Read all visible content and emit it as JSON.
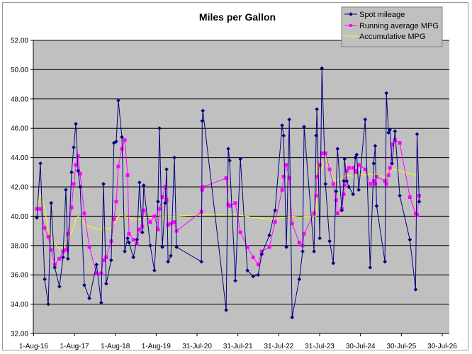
{
  "chart_data": {
    "type": "line",
    "title": "Miles per Gallon",
    "xlabel": "",
    "ylabel": "",
    "ylim": [
      32,
      52
    ],
    "xlim": [
      "2016-08-01",
      "2026-07-30"
    ],
    "y_ticks": [
      "32.00",
      "34.00",
      "36.00",
      "38.00",
      "40.00",
      "42.00",
      "44.00",
      "46.00",
      "48.00",
      "50.00",
      "52.00"
    ],
    "x_ticks": [
      {
        "date": "2016-08-01",
        "label": "1-Aug-16"
      },
      {
        "date": "2017-08-01",
        "label": "1-Aug-17"
      },
      {
        "date": "2018-08-01",
        "label": "1-Aug-18"
      },
      {
        "date": "2019-08-01",
        "label": "1-Aug-19"
      },
      {
        "date": "2020-07-31",
        "label": "31-Jul-20"
      },
      {
        "date": "2021-07-31",
        "label": "31-Jul-21"
      },
      {
        "date": "2022-07-31",
        "label": "31-Jul-22"
      },
      {
        "date": "2023-07-31",
        "label": "31-Jul-23"
      },
      {
        "date": "2024-07-30",
        "label": "30-Jul-24"
      },
      {
        "date": "2025-07-30",
        "label": "30-Jul-25"
      },
      {
        "date": "2026-07-30",
        "label": "30-Jul-26"
      }
    ],
    "grid": true,
    "legend_position": "top-right",
    "background": "#c0c0c0",
    "x": [
      "2016-08-30",
      "2016-10-01",
      "2016-11-08",
      "2016-12-10",
      "2017-01-05",
      "2017-02-06",
      "2017-03-20",
      "2017-04-21",
      "2017-05-16",
      "2017-06-04",
      "2017-07-06",
      "2017-07-25",
      "2017-08-13",
      "2017-09-02",
      "2017-09-21",
      "2017-10-28",
      "2017-12-12",
      "2018-02-14",
      "2018-03-28",
      "2018-04-17",
      "2018-05-12",
      "2018-06-25",
      "2018-07-20",
      "2018-08-09",
      "2018-08-28",
      "2018-09-29",
      "2018-10-24",
      "2018-11-19",
      "2018-12-01",
      "2019-01-09",
      "2019-02-10",
      "2019-03-05",
      "2019-03-30",
      "2019-04-12",
      "2019-06-09",
      "2019-07-16",
      "2019-08-17",
      "2019-08-30",
      "2019-09-25",
      "2019-10-20",
      "2019-11-02",
      "2019-11-15",
      "2019-12-10",
      "2020-01-11",
      "2020-01-30",
      "2020-09-08",
      "2020-09-15",
      "2020-09-21",
      "2021-04-17",
      "2021-05-06",
      "2021-05-18",
      "2021-07-08",
      "2021-08-22",
      "2021-10-24",
      "2021-12-14",
      "2022-01-28",
      "2022-02-28",
      "2022-05-08",
      "2022-06-28",
      "2022-08-30",
      "2022-09-12",
      "2022-10-07",
      "2022-11-02",
      "2022-11-27",
      "2023-01-30",
      "2023-03-01",
      "2023-03-14",
      "2023-06-11",
      "2023-06-30",
      "2023-07-06",
      "2023-08-01",
      "2023-08-20",
      "2023-09-21",
      "2023-10-28",
      "2023-11-30",
      "2023-12-25",
      "2024-01-07",
      "2024-02-14",
      "2024-03-03",
      "2024-03-10",
      "2024-03-29",
      "2024-04-17",
      "2024-05-25",
      "2024-06-13",
      "2024-06-26",
      "2024-07-14",
      "2024-09-10",
      "2024-10-24",
      "2024-11-25",
      "2024-12-08",
      "2024-12-21",
      "2025-03-05",
      "2025-03-18",
      "2025-04-06",
      "2025-04-19",
      "2025-05-08",
      "2025-06-03",
      "2025-07-16",
      "2025-10-14",
      "2025-12-04",
      "2025-12-17",
      "2026-01-05"
    ],
    "series": [
      {
        "name": "Spot mileage",
        "color": "#000080",
        "marker": "diamond",
        "values": [
          39.9,
          43.6,
          35.7,
          34.0,
          40.9,
          36.5,
          35.2,
          37.2,
          41.8,
          37.1,
          43.0,
          44.7,
          46.3,
          43.1,
          42.0,
          35.3,
          34.4,
          36.7,
          34.1,
          42.2,
          35.4,
          37.0,
          45.0,
          45.1,
          47.9,
          45.4,
          37.6,
          38.5,
          38.2,
          37.2,
          38.4,
          42.3,
          38.9,
          42.1,
          38.0,
          36.3,
          41.0,
          46.0,
          37.9,
          40.9,
          43.2,
          36.9,
          37.3,
          44.0,
          37.9,
          36.9,
          46.5,
          47.2,
          33.6,
          44.6,
          43.8,
          35.6,
          43.9,
          36.3,
          35.9,
          36.0,
          37.4,
          38.7,
          40.4,
          46.2,
          45.5,
          37.9,
          46.6,
          33.1,
          35.7,
          37.6,
          46.1,
          37.6,
          45.5,
          47.3,
          38.5,
          50.1,
          42.2,
          38.3,
          36.8,
          41.7,
          44.6,
          40.4,
          42.4,
          43.9,
          42.4,
          42.0,
          41.5,
          44.0,
          44.2,
          41.8,
          46.6,
          36.5,
          43.6,
          44.8,
          40.7,
          36.9,
          48.4,
          45.7,
          45.9,
          43.6,
          45.8,
          41.4,
          38.4,
          35.0,
          45.6,
          41.0
        ]
      },
      {
        "name": "Running average MPG",
        "color": "#ff00ff",
        "marker": "square",
        "values": [
          40.5,
          40.5,
          39.2,
          38.6,
          37.7,
          36.7,
          37.1,
          37.6,
          37.7,
          38.8,
          40.6,
          42.2,
          43.5,
          44.1,
          42.9,
          40.2,
          37.9,
          36.1,
          36.1,
          37.0,
          37.2,
          38.3,
          39.8,
          41.0,
          43.4,
          44.6,
          45.2,
          42.8,
          38.8,
          38.4,
          38.1,
          39.1,
          39.3,
          40.4,
          39.6,
          40.0,
          39.1,
          40.5,
          41.3,
          42.0,
          41.1,
          39.4,
          39.5,
          39.6,
          39.0,
          40.3,
          41.8,
          42.0,
          42.6,
          40.8,
          40.7,
          40.9,
          38.9,
          37.9,
          37.2,
          36.7,
          37.6,
          37.9,
          39.6,
          41.8,
          42.7,
          43.5,
          42.6,
          39.5,
          38.2,
          38.0,
          38.8,
          40.2,
          41.4,
          42.7,
          43.5,
          44.3,
          44.3,
          43.2,
          42.2,
          41.1,
          40.2,
          40.5,
          41.5,
          42.1,
          43.1,
          43.3,
          43.3,
          43.1,
          43.0,
          43.5,
          43.2,
          42.2,
          42.4,
          42.2,
          42.7,
          42.4,
          42.2,
          42.8,
          43.3,
          44.9,
          45.2,
          45.0,
          41.3,
          40.2,
          40.1,
          41.4
        ]
      },
      {
        "name": "Accumulative MPG",
        "color": "#ffff00",
        "marker": "none",
        "values": [
          40.3,
          41.5,
          40.6,
          39.0,
          38.5,
          38.1,
          37.8,
          37.9,
          38.2,
          38.5,
          38.9,
          39.2,
          39.8,
          40.0,
          39.9,
          39.5,
          39.3,
          39.1,
          39.1,
          39.3,
          39.1,
          39.2,
          39.5,
          39.7,
          40.0,
          40.1,
          40.0,
          39.9,
          39.9,
          39.8,
          39.8,
          39.8,
          39.8,
          39.9,
          39.9,
          39.9,
          39.9,
          39.95,
          40.0,
          40.0,
          40.0,
          40.0,
          40.0,
          40.0,
          40.0,
          40.1,
          40.1,
          40.1,
          40.1,
          40.1,
          40.1,
          40.1,
          40.05,
          40.0,
          39.9,
          39.9,
          39.85,
          39.8,
          39.85,
          39.9,
          39.9,
          39.95,
          40.0,
          40.0,
          39.95,
          39.95,
          40.0,
          40.0,
          40.0,
          43.5,
          43.2,
          43.2,
          44.0,
          43.2,
          42.6,
          42.4,
          42.5,
          42.6,
          42.7,
          42.7,
          42.8,
          42.8,
          42.7,
          42.8,
          42.9,
          42.9,
          42.8,
          42.9,
          42.8,
          42.9,
          42.8,
          42.7,
          42.9,
          43.2,
          43.4,
          43.2,
          43.2,
          43.1,
          42.9,
          42.8,
          42.8,
          42.8
        ]
      }
    ]
  }
}
